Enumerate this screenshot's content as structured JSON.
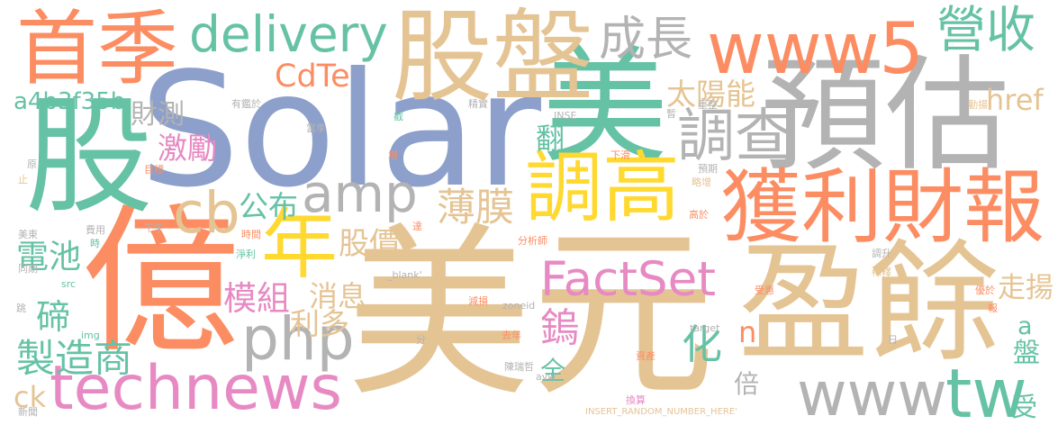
{
  "words": [
    {
      "text": "美元",
      "color": "#e5c494"
    },
    {
      "text": "Solar",
      "color": "#8da0cb"
    },
    {
      "text": "億",
      "color": "#fc8d62"
    },
    {
      "text": "股",
      "color": "#66c2a5"
    },
    {
      "text": "預估",
      "color": "#b3b3b3"
    },
    {
      "text": "美",
      "color": "#66c2a5"
    },
    {
      "text": "盈餘",
      "color": "#e5c494"
    },
    {
      "text": "獲利財報",
      "color": "#fc8d62"
    },
    {
      "text": "股盤",
      "color": "#e5c494"
    },
    {
      "text": "首季",
      "color": "#fc8d62"
    },
    {
      "text": "www5",
      "color": "#fc8d62"
    },
    {
      "text": "調高",
      "color": "#ffd92f"
    },
    {
      "text": "technews",
      "color": "#e78ac3"
    },
    {
      "text": "www",
      "color": "#b3b3b3"
    },
    {
      "text": "tw",
      "color": "#66c2a5"
    },
    {
      "text": "FactSet",
      "color": "#e78ac3"
    },
    {
      "text": "php",
      "color": "#b3b3b3"
    },
    {
      "text": "amp",
      "color": "#b3b3b3"
    },
    {
      "text": "cb",
      "color": "#e5c494"
    },
    {
      "text": "年",
      "color": "#ffd92f"
    },
    {
      "text": "delivery",
      "color": "#66c2a5"
    },
    {
      "text": "成長",
      "color": "#b3b3b3"
    },
    {
      "text": "營收",
      "color": "#66c2a5"
    },
    {
      "text": "CdTe",
      "color": "#fc8d62"
    },
    {
      "text": "調查",
      "color": "#b3b3b3"
    },
    {
      "text": "太陽能",
      "color": "#e5c494"
    },
    {
      "text": "href",
      "color": "#e5c494"
    },
    {
      "text": "a4b3f35b",
      "color": "#66c2a5"
    },
    {
      "text": "財測",
      "color": "#b3b3b3"
    },
    {
      "text": "激勵",
      "color": "#e78ac3"
    },
    {
      "text": "翻",
      "color": "#66c2a5"
    },
    {
      "text": "薄膜",
      "color": "#e5c494"
    },
    {
      "text": "公布",
      "color": "#66c2a5"
    },
    {
      "text": "電池",
      "color": "#66c2a5"
    },
    {
      "text": "碲",
      "color": "#66c2a5"
    },
    {
      "text": "模組",
      "color": "#e78ac3"
    },
    {
      "text": "消息",
      "color": "#e5c494"
    },
    {
      "text": "利多",
      "color": "#e5c494"
    },
    {
      "text": "股價",
      "color": "#e5c494"
    },
    {
      "text": "鎢",
      "color": "#e78ac3"
    },
    {
      "text": "化",
      "color": "#66c2a5"
    },
    {
      "text": "全",
      "color": "#66c2a5"
    },
    {
      "text": "倍",
      "color": "#b3b3b3"
    },
    {
      "text": "製造商",
      "color": "#66c2a5"
    },
    {
      "text": "n",
      "color": "#fc8d62"
    },
    {
      "text": "走揚",
      "color": "#e5c494"
    },
    {
      "text": "a",
      "color": "#66c2a5"
    },
    {
      "text": "盤",
      "color": "#66c2a5"
    },
    {
      "text": "受",
      "color": "#66c2a5"
    },
    {
      "text": "ck",
      "color": "#e5c494"
    },
    {
      "text": "有鑑於",
      "color": "#b3b3b3"
    },
    {
      "text": "截",
      "color": "#66c2a5"
    },
    {
      "text": "精實",
      "color": "#b3b3b3"
    },
    {
      "text": "當季",
      "color": "#b3b3b3"
    },
    {
      "text": "INSE",
      "color": "#b3b3b3"
    },
    {
      "text": "暫",
      "color": "#b3b3b3"
    },
    {
      "text": "重整",
      "color": "#b3b3b3"
    },
    {
      "text": "勤揚",
      "color": "#e5c494"
    },
    {
      "text": "原",
      "color": "#b3b3b3"
    },
    {
      "text": "止",
      "color": "#e5c494"
    },
    {
      "text": "目標",
      "color": "#fc8d62"
    },
    {
      "text": "增",
      "color": "#fc8d62"
    },
    {
      "text": "下滑",
      "color": "#fc8d62"
    },
    {
      "text": "預期",
      "color": "#b3b3b3"
    },
    {
      "text": "略增",
      "color": "#e5c494"
    },
    {
      "text": "美東",
      "color": "#b3b3b3"
    },
    {
      "text": "費用",
      "color": "#b3b3b3"
    },
    {
      "text": "時",
      "color": "#66c2a5"
    },
    {
      "text": "下午",
      "color": "#b3b3b3"
    },
    {
      "text": "時間",
      "color": "#fc8d62"
    },
    {
      "text": "達",
      "color": "#fc8d62"
    },
    {
      "text": "淨利",
      "color": "#66c2a5"
    },
    {
      "text": "分析師",
      "color": "#fc8d62"
    },
    {
      "text": "高於",
      "color": "#fc8d62"
    },
    {
      "text": "調升",
      "color": "#b3b3b3"
    },
    {
      "text": "稀釋",
      "color": "#e5c494"
    },
    {
      "text": "同期",
      "color": "#b3b3b3"
    },
    {
      "text": "src",
      "color": "#66c2a5"
    },
    {
      "text": "_blank'",
      "color": "#b3b3b3"
    },
    {
      "text": "受惠",
      "color": "#fc8d62"
    },
    {
      "text": "優於",
      "color": "#fc8d62"
    },
    {
      "text": "減損",
      "color": "#fc8d62"
    },
    {
      "text": "zoneid",
      "color": "#b3b3b3"
    },
    {
      "text": "跳",
      "color": "#b3b3b3"
    },
    {
      "text": "target",
      "color": "#b3b3b3"
    },
    {
      "text": "報",
      "color": "#fc8d62"
    },
    {
      "text": "img",
      "color": "#66c2a5"
    },
    {
      "text": "分",
      "color": "#b3b3b3"
    },
    {
      "text": "去年",
      "color": "#fc8d62"
    },
    {
      "text": "日",
      "color": "#b3b3b3"
    },
    {
      "text": "陳瑞哲",
      "color": "#b3b3b3"
    },
    {
      "text": "avw",
      "color": "#b3b3b3"
    },
    {
      "text": "資產",
      "color": "#fc8d62"
    },
    {
      "text": "新聞",
      "color": "#b3b3b3"
    },
    {
      "text": "換算",
      "color": "#e78ac3"
    },
    {
      "text": "INSERT_RANDOM_NUMBER_HERE'",
      "color": "#e5c494"
    }
  ]
}
